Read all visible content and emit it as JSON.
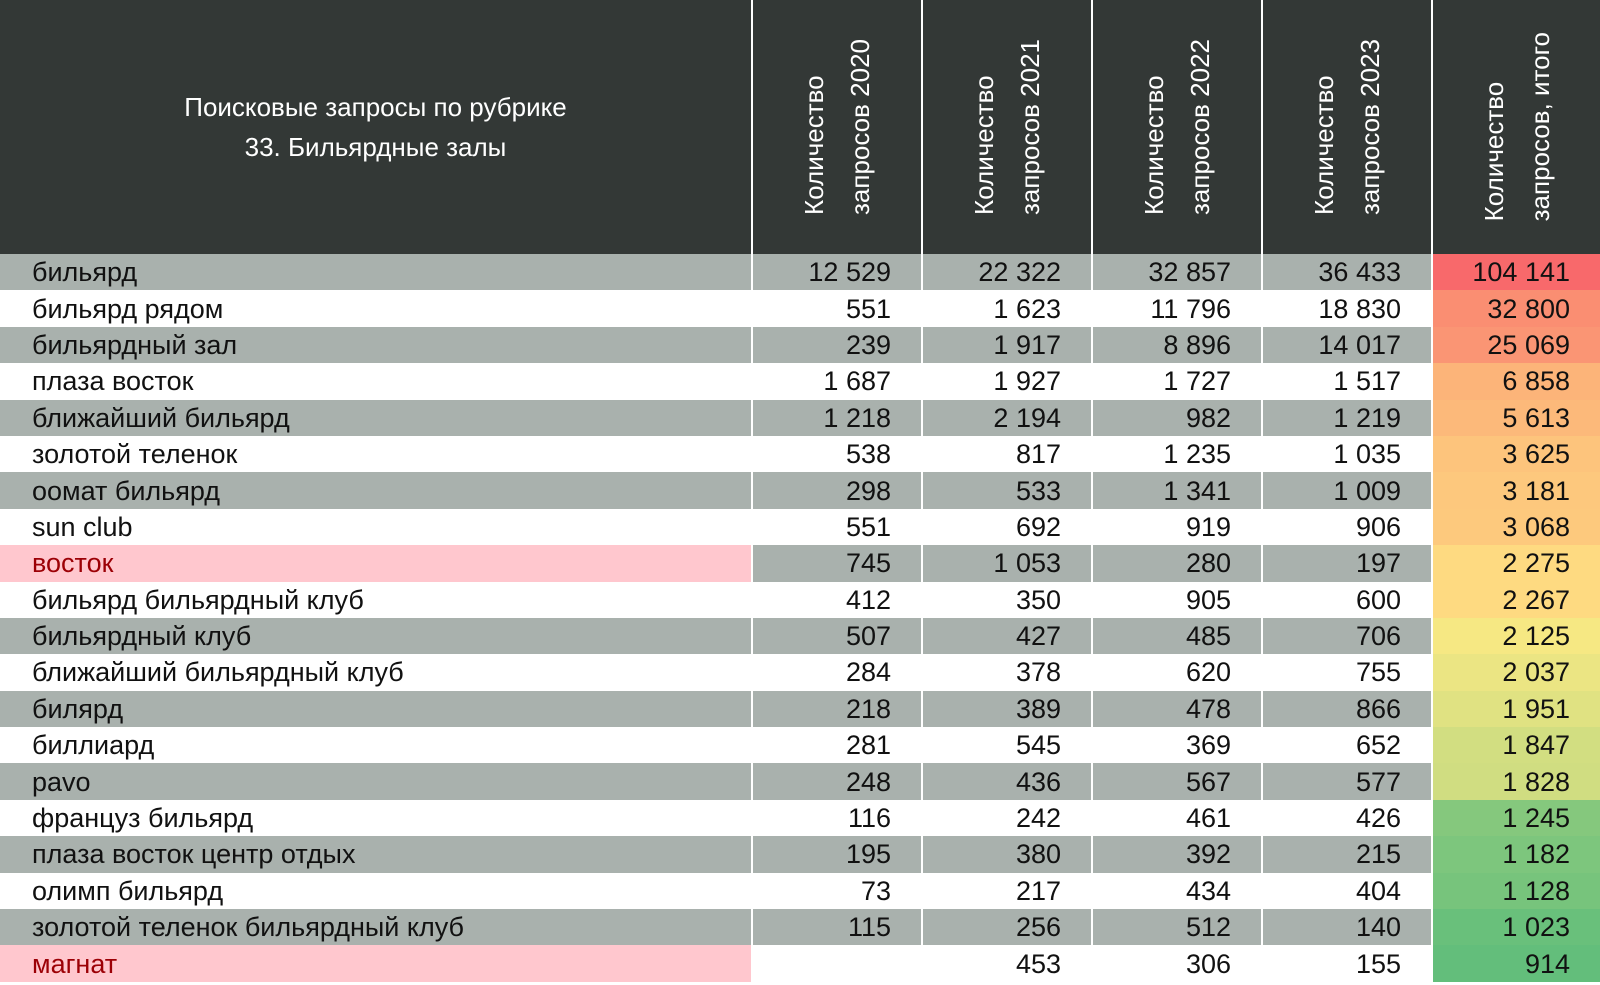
{
  "chart_data": {
    "type": "table",
    "title_lines": [
      "Поисковые запросы по рубрике",
      "33. Бильярдные залы"
    ],
    "columns": [
      "Количество запросов 2020",
      "Количество запросов 2021",
      "Количество запросов 2022",
      "Количество запросов 2023",
      "Количество запросов, итого"
    ],
    "column_lines": [
      [
        "Количество",
        "запросов 2020"
      ],
      [
        "Количество",
        "запросов 2021"
      ],
      [
        "Количество",
        "запросов 2022"
      ],
      [
        "Количество",
        "запросов 2023"
      ],
      [
        "Количество",
        "запросов, итого"
      ]
    ],
    "highlight_colors": {
      "name_pink_bg": "#ffc7ce",
      "name_pink_text": "#9c0006",
      "total_high": "#f8696b",
      "total_mid": "#ffeb84",
      "total_low": "#63be7b"
    },
    "rows": [
      {
        "name": "бильярд",
        "y2020": "12 529",
        "y2021": "22 322",
        "y2022": "32 857",
        "y2023": "36 433",
        "total": "104 141",
        "total_value": 104141,
        "highlight": false
      },
      {
        "name": "бильярд рядом",
        "y2020": "551",
        "y2021": "1 623",
        "y2022": "11 796",
        "y2023": "18 830",
        "total": "32 800",
        "total_value": 32800,
        "highlight": false
      },
      {
        "name": "бильярдный зал",
        "y2020": "239",
        "y2021": "1 917",
        "y2022": "8 896",
        "y2023": "14 017",
        "total": "25 069",
        "total_value": 25069,
        "highlight": false
      },
      {
        "name": "плаза восток",
        "y2020": "1 687",
        "y2021": "1 927",
        "y2022": "1 727",
        "y2023": "1 517",
        "total": "6 858",
        "total_value": 6858,
        "highlight": false
      },
      {
        "name": "ближайший бильярд",
        "y2020": "1 218",
        "y2021": "2 194",
        "y2022": "982",
        "y2023": "1 219",
        "total": "5 613",
        "total_value": 5613,
        "highlight": false
      },
      {
        "name": "золотой теленок",
        "y2020": "538",
        "y2021": "817",
        "y2022": "1 235",
        "y2023": "1 035",
        "total": "3 625",
        "total_value": 3625,
        "highlight": false
      },
      {
        "name": "оомат бильярд",
        "y2020": "298",
        "y2021": "533",
        "y2022": "1 341",
        "y2023": "1 009",
        "total": "3 181",
        "total_value": 3181,
        "highlight": false
      },
      {
        "name": "sun club",
        "y2020": "551",
        "y2021": "692",
        "y2022": "919",
        "y2023": "906",
        "total": "3 068",
        "total_value": 3068,
        "highlight": false
      },
      {
        "name": "восток",
        "y2020": "745",
        "y2021": "1 053",
        "y2022": "280",
        "y2023": "197",
        "total": "2 275",
        "total_value": 2275,
        "highlight": true
      },
      {
        "name": "бильярд бильярдный клуб",
        "y2020": "412",
        "y2021": "350",
        "y2022": "905",
        "y2023": "600",
        "total": "2 267",
        "total_value": 2267,
        "highlight": false
      },
      {
        "name": "бильярдный клуб",
        "y2020": "507",
        "y2021": "427",
        "y2022": "485",
        "y2023": "706",
        "total": "2 125",
        "total_value": 2125,
        "highlight": false
      },
      {
        "name": "ближайший бильярдный клуб",
        "y2020": "284",
        "y2021": "378",
        "y2022": "620",
        "y2023": "755",
        "total": "2 037",
        "total_value": 2037,
        "highlight": false
      },
      {
        "name": "билярд",
        "y2020": "218",
        "y2021": "389",
        "y2022": "478",
        "y2023": "866",
        "total": "1 951",
        "total_value": 1951,
        "highlight": false
      },
      {
        "name": "биллиард",
        "y2020": "281",
        "y2021": "545",
        "y2022": "369",
        "y2023": "652",
        "total": "1 847",
        "total_value": 1847,
        "highlight": false
      },
      {
        "name": "pavo",
        "y2020": "248",
        "y2021": "436",
        "y2022": "567",
        "y2023": "577",
        "total": "1 828",
        "total_value": 1828,
        "highlight": false
      },
      {
        "name": "француз бильярд",
        "y2020": "116",
        "y2021": "242",
        "y2022": "461",
        "y2023": "426",
        "total": "1 245",
        "total_value": 1245,
        "highlight": false
      },
      {
        "name": "плаза восток центр отдых",
        "y2020": "195",
        "y2021": "380",
        "y2022": "392",
        "y2023": "215",
        "total": "1 182",
        "total_value": 1182,
        "highlight": false
      },
      {
        "name": "олимп бильярд",
        "y2020": "73",
        "y2021": "217",
        "y2022": "434",
        "y2023": "404",
        "total": "1 128",
        "total_value": 1128,
        "highlight": false
      },
      {
        "name": "золотой теленок бильярдный клуб",
        "y2020": "115",
        "y2021": "256",
        "y2022": "512",
        "y2023": "140",
        "total": "1 023",
        "total_value": 1023,
        "highlight": false
      },
      {
        "name": "магнат",
        "y2020": "",
        "y2021": "453",
        "y2022": "306",
        "y2023": "155",
        "total": "914",
        "total_value": 914,
        "highlight": true
      }
    ]
  }
}
